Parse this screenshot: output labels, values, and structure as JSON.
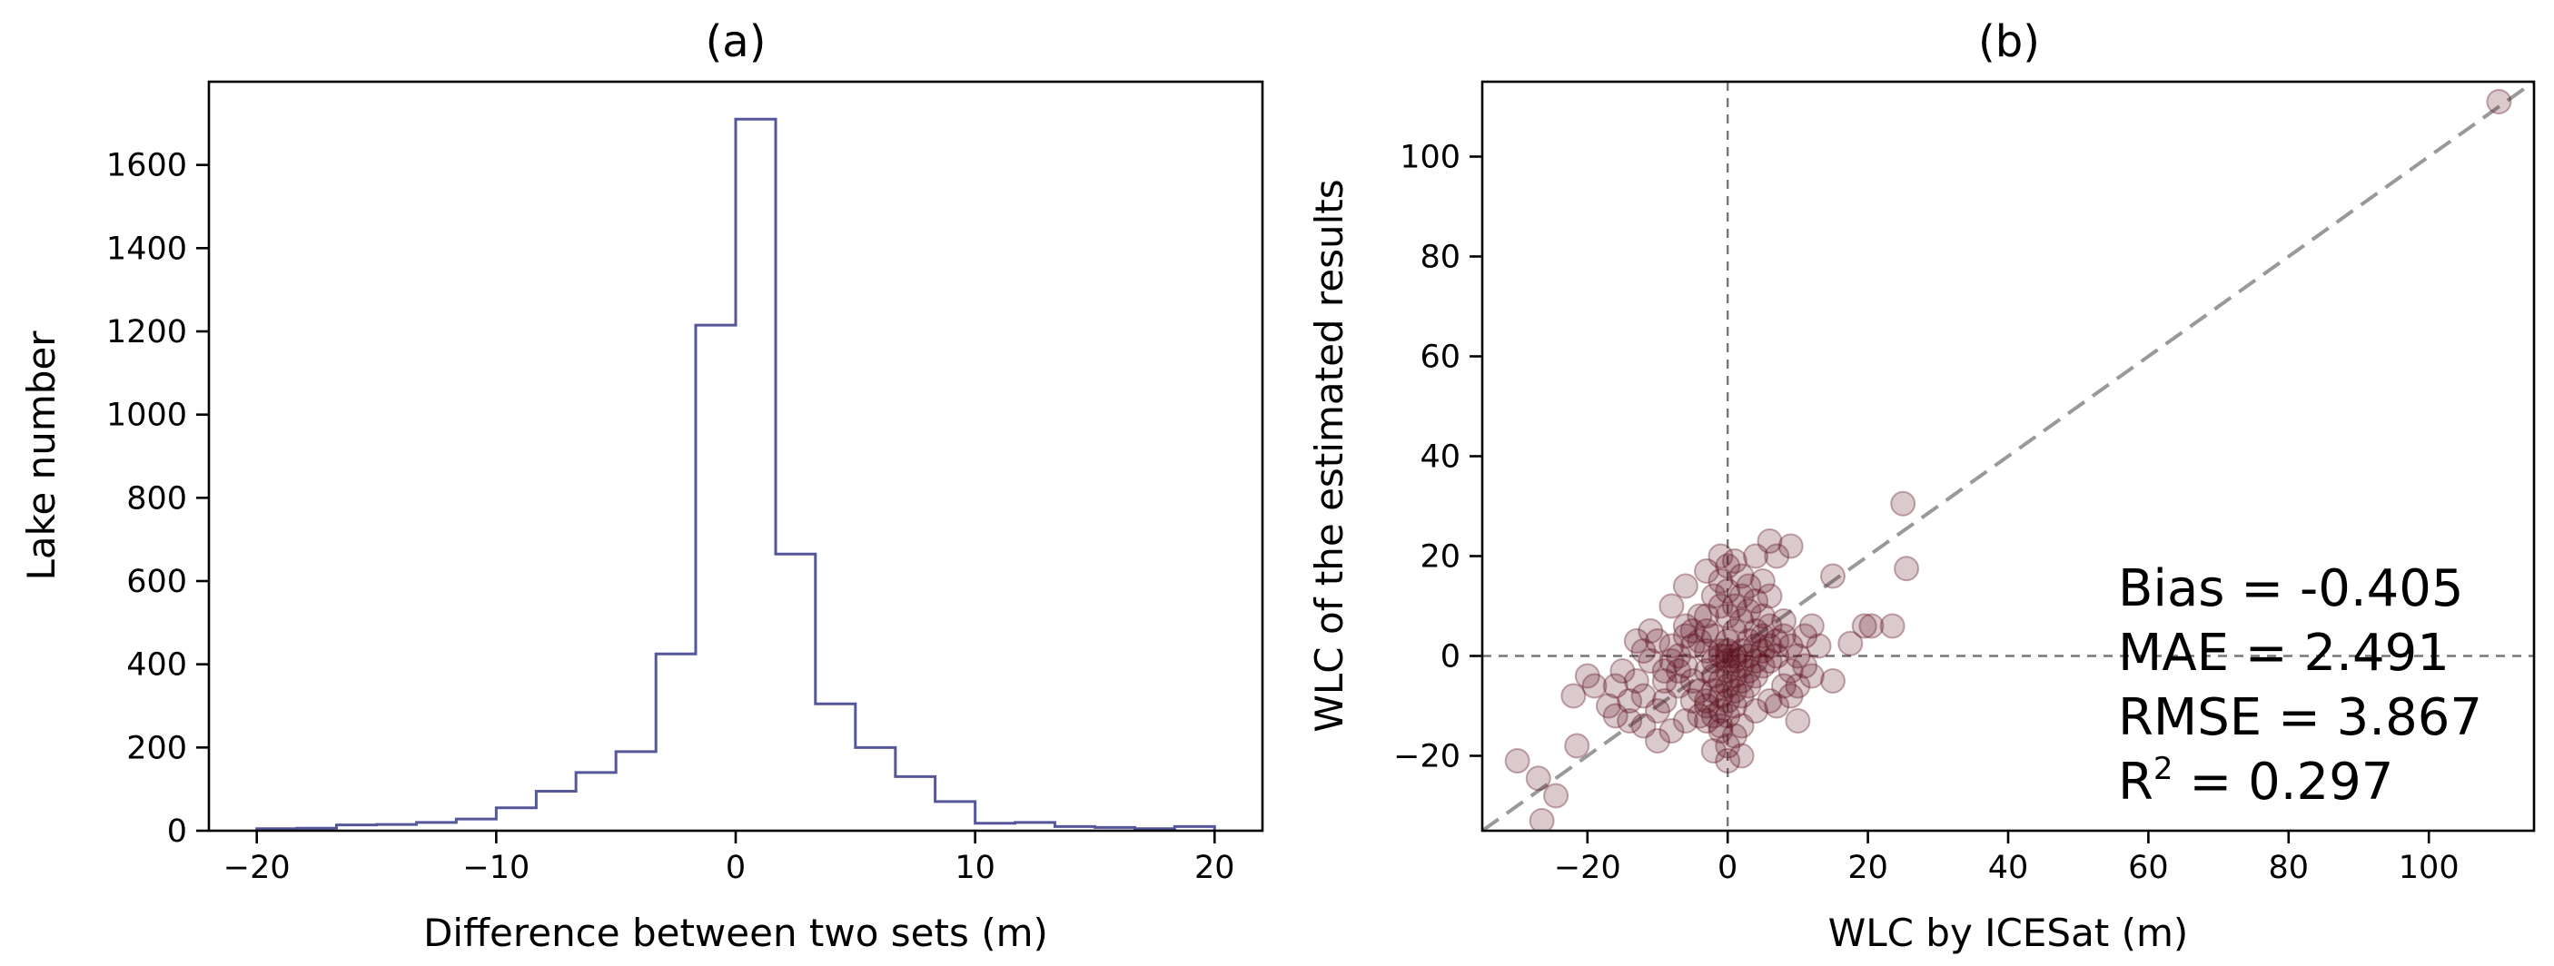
{
  "chart_data": [
    {
      "type": "histogram",
      "title": "(a)",
      "xlabel": "Difference between two sets (m)",
      "ylabel": "Lake number",
      "xlim": [
        -22,
        22
      ],
      "ylim": [
        0,
        1800
      ],
      "xticks": [
        -20,
        -10,
        0,
        10,
        20
      ],
      "xtick_labels": [
        "−20",
        "−10",
        "0",
        "10",
        "20"
      ],
      "yticks": [
        0,
        200,
        400,
        600,
        800,
        1000,
        1200,
        1400,
        1600
      ],
      "ytick_labels": [
        "0",
        "200",
        "400",
        "600",
        "800",
        "1000",
        "1200",
        "1400",
        "1600"
      ],
      "bin_edges": [
        -20,
        -18.33,
        -16.67,
        -15,
        -13.33,
        -11.67,
        -10,
        -8.33,
        -6.67,
        -5,
        -3.33,
        -1.67,
        0,
        1.67,
        3.33,
        5,
        6.67,
        8.33,
        10,
        11.67,
        13.33,
        15,
        16.67,
        18.33,
        20
      ],
      "counts": [
        5,
        6,
        14,
        15,
        20,
        28,
        55,
        95,
        140,
        190,
        425,
        1215,
        1710,
        665,
        305,
        200,
        130,
        70,
        18,
        20,
        10,
        8,
        5,
        10
      ],
      "color": "#55579a"
    },
    {
      "type": "scatter",
      "title": "(b)",
      "xlabel": "WLC by ICESat (m)",
      "ylabel": "WLC of the estimated results",
      "xlim": [
        -35,
        115
      ],
      "ylim": [
        -35,
        115
      ],
      "xticks": [
        -20,
        0,
        20,
        40,
        60,
        80,
        100
      ],
      "xtick_labels": [
        "−20",
        "0",
        "20",
        "40",
        "60",
        "80",
        "100"
      ],
      "yticks": [
        -20,
        0,
        20,
        40,
        60,
        80,
        100
      ],
      "ytick_labels": [
        "−20",
        "0",
        "20",
        "40",
        "60",
        "80",
        "100"
      ],
      "point_color": "#5c0f1c",
      "ref_line_color": "#999999",
      "points": [
        [
          110,
          111
        ],
        [
          25,
          30.5
        ],
        [
          25.5,
          17.5
        ],
        [
          20.5,
          6
        ],
        [
          19.5,
          6
        ],
        [
          23.5,
          6
        ],
        [
          15,
          16
        ],
        [
          17.5,
          2.5
        ],
        [
          15,
          -5
        ],
        [
          -30,
          -21
        ],
        [
          -27,
          -24.5
        ],
        [
          -24.5,
          -28
        ],
        [
          -21.5,
          -18
        ],
        [
          -22,
          -8
        ],
        [
          -26.5,
          -33
        ],
        [
          -20,
          -4
        ],
        [
          -19,
          -6
        ],
        [
          -16,
          -12
        ],
        [
          -14,
          -9
        ],
        [
          -12,
          -14
        ],
        [
          -10,
          -17
        ],
        [
          -8,
          -15
        ],
        [
          -6,
          -13
        ],
        [
          -9,
          -5
        ],
        [
          -7,
          -3
        ],
        [
          -5,
          2
        ],
        [
          -6,
          6
        ],
        [
          -3,
          8
        ],
        [
          -2,
          12
        ],
        [
          -1,
          15
        ],
        [
          0,
          18
        ],
        [
          1,
          19
        ],
        [
          2,
          16
        ],
        [
          3,
          14
        ],
        [
          4,
          11
        ],
        [
          5,
          8
        ],
        [
          6,
          6
        ],
        [
          8,
          4
        ],
        [
          9,
          2
        ],
        [
          10,
          0
        ],
        [
          11,
          -2
        ],
        [
          12,
          -4
        ],
        [
          8,
          -6
        ],
        [
          6,
          -9
        ],
        [
          4,
          -11
        ],
        [
          2,
          -14
        ],
        [
          1,
          -16
        ],
        [
          0,
          -18
        ],
        [
          -1,
          -15
        ],
        [
          -2,
          -12
        ],
        [
          -3,
          -10
        ],
        [
          -4,
          -7
        ],
        [
          -5,
          -5
        ],
        [
          -6,
          -2
        ],
        [
          -7,
          0
        ],
        [
          -8,
          2
        ],
        [
          -10,
          3
        ],
        [
          -12,
          1
        ],
        [
          -11,
          -1
        ],
        [
          -9,
          -3
        ],
        [
          -3,
          -3
        ],
        [
          -2,
          -1
        ],
        [
          -1,
          1
        ],
        [
          0,
          3
        ],
        [
          1,
          5
        ],
        [
          2,
          7
        ],
        [
          3,
          9
        ],
        [
          4,
          5
        ],
        [
          3,
          3
        ],
        [
          2,
          1
        ],
        [
          1,
          -1
        ],
        [
          0,
          -3
        ],
        [
          -1,
          -5
        ],
        [
          -2,
          -7
        ],
        [
          -3,
          -9
        ],
        [
          -4,
          -12
        ],
        [
          -1,
          -8
        ],
        [
          0,
          -6
        ],
        [
          1,
          -4
        ],
        [
          2,
          -2
        ],
        [
          3,
          0
        ],
        [
          4,
          2
        ],
        [
          5,
          4
        ],
        [
          6,
          2
        ],
        [
          7,
          0
        ],
        [
          5,
          -2
        ],
        [
          4,
          -4
        ],
        [
          3,
          -6
        ],
        [
          2,
          -8
        ],
        [
          1,
          -10
        ],
        [
          0,
          -12
        ],
        [
          -1,
          -11
        ],
        [
          -2,
          -4
        ],
        [
          -3,
          1
        ],
        [
          -4,
          3
        ],
        [
          -5,
          5
        ],
        [
          -4,
          8
        ],
        [
          -2,
          4
        ],
        [
          0,
          8
        ],
        [
          1,
          10
        ],
        [
          2,
          12
        ],
        [
          0,
          13
        ],
        [
          -1,
          10
        ],
        [
          -3,
          5
        ],
        [
          -6,
          4
        ],
        [
          -8,
          -1
        ],
        [
          -7,
          -6
        ],
        [
          -5,
          -9
        ],
        [
          -3,
          -13
        ],
        [
          -1,
          -14
        ],
        [
          0,
          -9
        ],
        [
          1,
          -7
        ],
        [
          2,
          -5
        ],
        [
          3,
          -3
        ],
        [
          4,
          -1
        ],
        [
          5,
          1
        ],
        [
          6,
          -1
        ],
        [
          7,
          3
        ],
        [
          8,
          7
        ],
        [
          9,
          -3
        ],
        [
          10,
          -6
        ],
        [
          -13,
          -5
        ],
        [
          -15,
          -3
        ],
        [
          -12,
          -8
        ],
        [
          -10,
          -11
        ],
        [
          -14,
          -13
        ],
        [
          -9,
          -9
        ],
        [
          -11,
          5
        ],
        [
          -13,
          3
        ],
        [
          -16,
          -6
        ],
        [
          -17,
          -10
        ],
        [
          7,
          -10
        ],
        [
          9,
          -8
        ],
        [
          11,
          4
        ],
        [
          13,
          2
        ],
        [
          12,
          6
        ],
        [
          6,
          12
        ],
        [
          5,
          15
        ],
        [
          7,
          20
        ],
        [
          9,
          22
        ],
        [
          6,
          23
        ],
        [
          4,
          20
        ],
        [
          -1,
          20
        ],
        [
          -3,
          17
        ],
        [
          -6,
          14
        ],
        [
          -8,
          10
        ],
        [
          10,
          -13
        ],
        [
          0,
          -21
        ],
        [
          -2,
          -19
        ],
        [
          2,
          -20
        ],
        [
          0,
          0
        ],
        [
          0,
          1
        ],
        [
          1,
          0
        ],
        [
          -1,
          0
        ],
        [
          0,
          -1
        ]
      ],
      "stats": {
        "bias": "Bias = -0.405",
        "mae": "MAE = 2.491",
        "rmse": "RMSE = 3.867",
        "r2_prefix": "R",
        "r2_sup": "2",
        "r2_value": " = 0.297"
      }
    }
  ]
}
